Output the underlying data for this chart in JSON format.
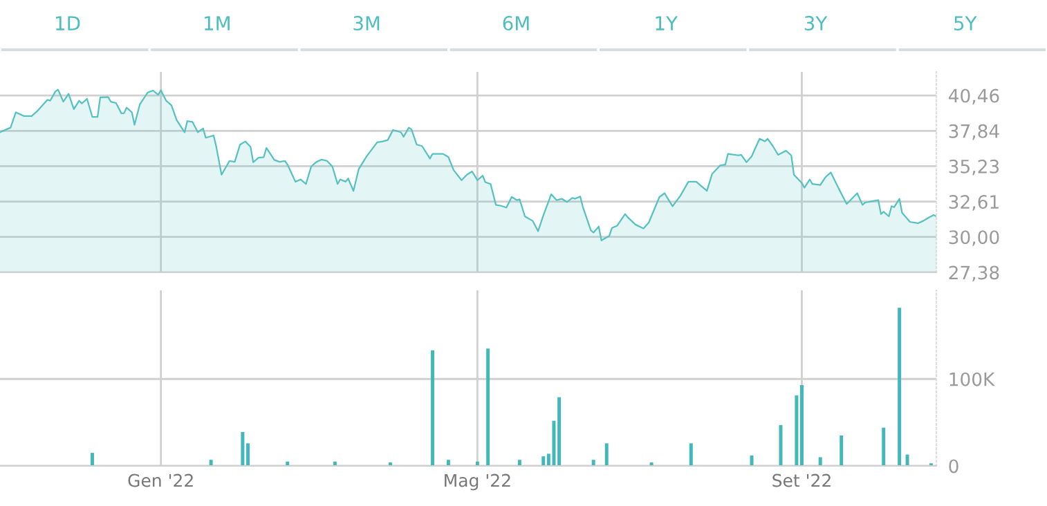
{
  "chart_data": [
    {
      "type": "area",
      "annotations": [
        "1D",
        "1M",
        "3M",
        "6M",
        "1Y",
        "3Y",
        "5Y"
      ],
      "x": [
        "2021-11-01",
        "2021-11-05",
        "2021-11-07",
        "2021-11-10",
        "2021-11-13",
        "2021-11-15",
        "2021-11-19",
        "2021-11-20",
        "2021-11-22",
        "2021-11-23",
        "2021-11-25",
        "2021-11-27",
        "2021-11-29",
        "2021-12-01",
        "2021-12-02",
        "2021-12-04",
        "2021-12-06",
        "2021-12-08",
        "2021-12-09",
        "2021-12-12",
        "2021-12-13",
        "2021-12-15",
        "2021-12-17",
        "2021-12-18",
        "2021-12-19",
        "2021-12-21",
        "2021-12-22",
        "2021-12-24",
        "2021-12-27",
        "2021-12-29",
        "2021-12-31",
        "2022-01-01",
        "2022-01-03",
        "2022-01-05",
        "2022-01-07",
        "2022-01-10",
        "2022-01-11",
        "2022-01-13",
        "2022-01-15",
        "2022-01-17",
        "2022-01-18",
        "2022-01-21",
        "2022-01-22",
        "2022-01-24",
        "2022-01-27",
        "2022-01-29",
        "2022-01-31",
        "2022-02-02",
        "2022-02-04",
        "2022-02-05",
        "2022-02-07",
        "2022-02-09",
        "2022-02-10",
        "2022-02-13",
        "2022-02-15",
        "2022-02-17",
        "2022-02-18",
        "2022-02-21",
        "2022-02-23",
        "2022-02-25",
        "2022-02-27",
        "2022-03-01",
        "2022-03-03",
        "2022-03-05",
        "2022-03-07",
        "2022-03-09",
        "2022-03-10",
        "2022-03-12",
        "2022-03-13",
        "2022-03-15",
        "2022-03-17",
        "2022-03-20",
        "2022-03-24",
        "2022-03-26",
        "2022-03-28",
        "2022-03-30",
        "2022-04-02",
        "2022-04-03",
        "2022-04-05",
        "2022-04-06",
        "2022-04-08",
        "2022-04-10",
        "2022-04-13",
        "2022-04-14",
        "2022-04-18",
        "2022-04-20",
        "2022-04-22",
        "2022-04-25",
        "2022-04-27",
        "2022-04-29",
        "2022-05-01",
        "2022-05-03",
        "2022-05-04",
        "2022-05-06",
        "2022-05-08",
        "2022-05-10",
        "2022-05-12",
        "2022-05-14",
        "2022-05-16",
        "2022-05-17",
        "2022-05-19",
        "2022-05-22",
        "2022-05-24",
        "2022-05-26",
        "2022-05-29",
        "2022-05-31",
        "2022-06-02",
        "2022-06-04",
        "2022-06-06",
        "2022-06-07",
        "2022-06-09",
        "2022-06-10",
        "2022-06-13",
        "2022-06-14",
        "2022-06-16",
        "2022-06-17",
        "2022-06-20",
        "2022-06-21",
        "2022-06-23",
        "2022-06-26",
        "2022-06-27",
        "2022-06-30",
        "2022-07-03",
        "2022-07-05",
        "2022-07-09",
        "2022-07-11",
        "2022-07-12",
        "2022-07-14",
        "2022-07-17",
        "2022-07-20",
        "2022-07-23",
        "2022-07-25",
        "2022-07-27",
        "2022-07-29",
        "2022-08-01",
        "2022-08-03",
        "2022-08-04",
        "2022-08-08",
        "2022-08-09",
        "2022-08-11",
        "2022-08-13",
        "2022-08-14",
        "2022-08-16",
        "2022-08-18",
        "2022-08-19",
        "2022-08-21",
        "2022-08-23",
        "2022-08-26",
        "2022-08-28",
        "2022-08-29",
        "2022-09-01",
        "2022-09-02",
        "2022-09-04",
        "2022-09-05",
        "2022-09-08",
        "2022-09-10",
        "2022-09-12",
        "2022-09-15",
        "2022-09-18",
        "2022-09-22",
        "2022-09-24",
        "2022-09-25",
        "2022-09-28",
        "2022-09-30",
        "2022-10-01",
        "2022-10-02",
        "2022-10-04",
        "2022-10-05",
        "2022-10-06",
        "2022-10-08",
        "2022-10-09",
        "2022-10-12",
        "2022-10-15",
        "2022-10-17",
        "2022-10-19",
        "2022-10-21",
        "2022-10-22"
      ],
      "series": [
        {
          "color": "#55c1c1",
          "values": [
            37.74,
            38.08,
            39.21,
            38.94,
            38.94,
            39.28,
            40.14,
            40.07,
            40.75,
            40.89,
            40.0,
            40.58,
            39.45,
            40.07,
            39.86,
            40.21,
            38.87,
            38.87,
            40.31,
            40.34,
            40.0,
            39.9,
            39.14,
            39.14,
            39.56,
            39.21,
            38.29,
            39.79,
            40.68,
            40.82,
            40.51,
            40.85,
            40.07,
            39.73,
            38.63,
            37.74,
            38.56,
            38.5,
            37.74,
            38.02,
            37.33,
            37.5,
            36.65,
            34.6,
            35.62,
            35.55,
            36.82,
            37.06,
            36.65,
            35.52,
            35.86,
            35.9,
            36.58,
            35.69,
            35.55,
            35.62,
            35.35,
            34.08,
            34.25,
            33.91,
            35.21,
            35.55,
            35.72,
            35.62,
            35.21,
            33.91,
            34.25,
            34.08,
            34.32,
            33.4,
            35.01,
            35.96,
            36.99,
            37.06,
            37.16,
            37.91,
            37.74,
            37.4,
            38.08,
            37.95,
            36.82,
            36.72,
            35.79,
            36.14,
            36.14,
            35.9,
            34.94,
            34.19,
            34.6,
            34.84,
            34.19,
            34.53,
            34.05,
            33.91,
            32.37,
            32.3,
            32.17,
            32.95,
            32.72,
            32.78,
            31.52,
            31.18,
            30.42,
            31.59,
            33.16,
            32.72,
            32.82,
            32.58,
            32.89,
            32.82,
            32.99,
            32.2,
            30.49,
            30.32,
            30.77,
            29.74,
            30.08,
            30.66,
            30.83,
            31.69,
            31.45,
            30.9,
            30.63,
            31.07,
            32.95,
            33.23,
            32.89,
            32.27,
            33.06,
            34.08,
            34.08,
            33.74,
            33.4,
            34.66,
            35.28,
            35.35,
            36.14,
            36.03,
            36.07,
            35.52,
            35.96,
            36.41,
            37.26,
            37.06,
            37.26,
            36.72,
            36.07,
            36.37,
            36.03,
            34.6,
            33.98,
            33.64,
            34.25,
            33.91,
            33.84,
            34.43,
            34.77,
            33.57,
            32.44,
            33.23,
            32.37,
            32.54,
            32.65,
            32.72,
            31.69,
            31.86,
            31.52,
            32.27,
            32.2,
            32.82,
            31.79,
            31.11,
            31.01,
            31.18,
            31.42,
            31.62,
            31.52
          ]
        }
      ],
      "xlim": [
        "2021-11-01",
        "2022-10-22"
      ],
      "xticks": [
        {
          "value": "2022-01-01",
          "label": null
        },
        {
          "value": "2022-05-01",
          "label": null
        },
        {
          "value": "2022-09-01",
          "label": null
        }
      ],
      "ylim": [
        27.38,
        42.2
      ],
      "yticks": [
        {
          "value": 27.38,
          "label": "27,38"
        },
        {
          "value": 30.0,
          "label": "30,00"
        },
        {
          "value": 32.61,
          "label": "32,61"
        },
        {
          "value": 35.23,
          "label": "35,23"
        },
        {
          "value": 37.84,
          "label": "37,84"
        },
        {
          "value": 40.46,
          "label": "40,46"
        }
      ],
      "grid": true,
      "tick_labels": "y"
    },
    {
      "type": "bar",
      "x": [
        "2021-12-06",
        "2022-01-20",
        "2022-02-01",
        "2022-02-03",
        "2022-02-18",
        "2022-03-08",
        "2022-03-29",
        "2022-04-14",
        "2022-04-20",
        "2022-05-01",
        "2022-05-05",
        "2022-05-17",
        "2022-05-26",
        "2022-05-28",
        "2022-05-30",
        "2022-06-01",
        "2022-06-14",
        "2022-06-19",
        "2022-07-06",
        "2022-07-21",
        "2022-08-13",
        "2022-08-24",
        "2022-08-30",
        "2022-09-01",
        "2022-09-08",
        "2022-09-16",
        "2022-10-02",
        "2022-10-08",
        "2022-10-11",
        "2022-10-20"
      ],
      "series": [
        {
          "color": "#43b8b8",
          "values": [
            15000,
            7000,
            39000,
            26000,
            5000,
            5000,
            4000,
            133000,
            7000,
            5000,
            135000,
            7000,
            11000,
            14000,
            52000,
            79000,
            7000,
            26000,
            4000,
            26000,
            12000,
            47000,
            81000,
            93000,
            10000,
            35000,
            44000,
            182000,
            13000,
            3000
          ]
        }
      ],
      "xlim": [
        "2021-11-01",
        "2022-10-22"
      ],
      "xticks": [
        {
          "value": "2022-01-01",
          "label": "Gen '22"
        },
        {
          "value": "2022-05-01",
          "label": "Mag '22"
        },
        {
          "value": "2022-09-01",
          "label": "Set '22"
        }
      ],
      "ylim": [
        0,
        202000
      ],
      "yticks": [
        {
          "value": 0,
          "label": "0"
        },
        {
          "value": 100000,
          "label": "100K"
        }
      ],
      "grid": true
    }
  ]
}
